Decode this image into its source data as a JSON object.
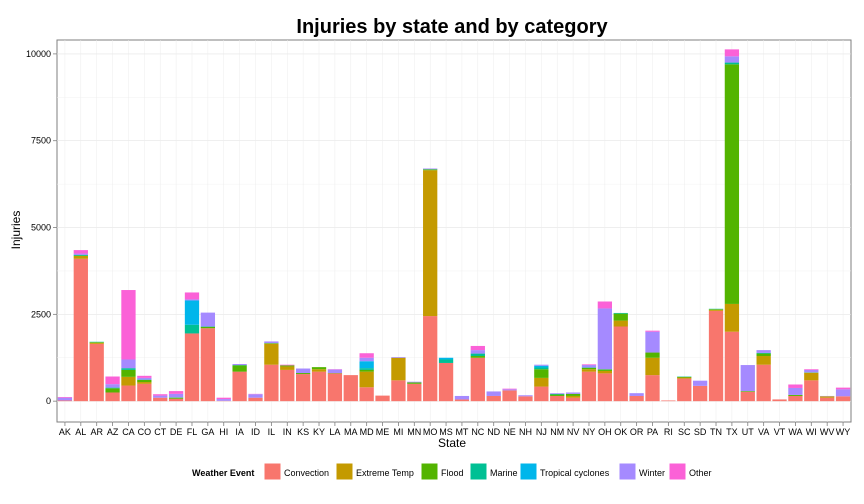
{
  "chart_data": {
    "type": "bar",
    "stacked": true,
    "title": "Injuries by state and by category",
    "xlabel": "State",
    "ylabel": "Injuries",
    "ylim": [
      -600,
      10400
    ],
    "yticks": [
      0,
      2500,
      5000,
      7500,
      10000
    ],
    "ytick_labels": [
      "0",
      "2500",
      "5000",
      "7500",
      "10000"
    ],
    "grid": true,
    "legend": {
      "title": "Weather Event",
      "position": "bottom"
    },
    "categories": [
      "AK",
      "AL",
      "AR",
      "AZ",
      "CA",
      "CO",
      "CT",
      "DE",
      "FL",
      "GA",
      "HI",
      "IA",
      "ID",
      "IL",
      "IN",
      "KS",
      "KY",
      "LA",
      "MA",
      "MD",
      "ME",
      "MI",
      "MN",
      "MO",
      "MS",
      "MT",
      "NC",
      "ND",
      "NE",
      "NH",
      "NJ",
      "NM",
      "NV",
      "NY",
      "OH",
      "OK",
      "OR",
      "PA",
      "RI",
      "SC",
      "SD",
      "TN",
      "TX",
      "UT",
      "VA",
      "VT",
      "WA",
      "WI",
      "WV",
      "WY"
    ],
    "series": [
      {
        "name": "Convection",
        "color": "#F8766D",
        "values": [
          20,
          4100,
          1650,
          250,
          450,
          500,
          100,
          70,
          1950,
          2100,
          10,
          850,
          100,
          1050,
          900,
          780,
          850,
          800,
          750,
          400,
          160,
          600,
          500,
          2450,
          1100,
          50,
          1250,
          150,
          310,
          140,
          420,
          150,
          100,
          850,
          800,
          2150,
          150,
          750,
          20,
          650,
          440,
          2600,
          2000,
          270,
          1050,
          50,
          150,
          600,
          100,
          140
        ]
      },
      {
        "name": "Extreme Temp",
        "color": "#C49A00",
        "values": [
          0,
          80,
          30,
          0,
          250,
          50,
          0,
          0,
          0,
          0,
          0,
          0,
          0,
          600,
          100,
          0,
          70,
          0,
          0,
          450,
          0,
          650,
          0,
          4200,
          0,
          0,
          0,
          0,
          0,
          0,
          250,
          0,
          50,
          70,
          70,
          170,
          0,
          500,
          0,
          30,
          0,
          30,
          800,
          0,
          250,
          0,
          0,
          220,
          40,
          0
        ]
      },
      {
        "name": "Flood",
        "color": "#53B400",
        "values": [
          0,
          10,
          20,
          120,
          200,
          60,
          0,
          30,
          0,
          40,
          0,
          180,
          0,
          20,
          30,
          30,
          60,
          10,
          0,
          50,
          0,
          0,
          40,
          20,
          0,
          0,
          50,
          0,
          0,
          0,
          250,
          40,
          60,
          40,
          40,
          200,
          0,
          150,
          0,
          20,
          0,
          20,
          6900,
          20,
          70,
          0,
          30,
          0,
          0,
          0
        ]
      },
      {
        "name": "Marine",
        "color": "#00C094",
        "values": [
          0,
          20,
          10,
          20,
          50,
          10,
          0,
          10,
          250,
          10,
          0,
          10,
          0,
          0,
          0,
          0,
          0,
          0,
          0,
          50,
          0,
          0,
          0,
          10,
          100,
          0,
          70,
          0,
          0,
          0,
          50,
          20,
          0,
          10,
          10,
          20,
          0,
          0,
          0,
          10,
          0,
          10,
          50,
          0,
          20,
          0,
          0,
          10,
          0,
          0
        ]
      },
      {
        "name": "Tropical cyclones",
        "color": "#00B6EB",
        "values": [
          0,
          0,
          0,
          0,
          0,
          0,
          0,
          0,
          700,
          0,
          0,
          0,
          0,
          0,
          0,
          0,
          0,
          0,
          0,
          200,
          0,
          0,
          0,
          0,
          50,
          0,
          0,
          0,
          0,
          0,
          50,
          0,
          0,
          0,
          0,
          0,
          0,
          0,
          0,
          0,
          0,
          0,
          0,
          0,
          0,
          0,
          0,
          0,
          0,
          0
        ]
      },
      {
        "name": "Winter",
        "color": "#A58AFF",
        "values": [
          80,
          40,
          0,
          100,
          250,
          50,
          60,
          100,
          30,
          400,
          50,
          30,
          100,
          50,
          0,
          130,
          0,
          100,
          0,
          100,
          0,
          20,
          20,
          20,
          0,
          100,
          100,
          130,
          30,
          30,
          30,
          20,
          40,
          70,
          1750,
          0,
          80,
          600,
          0,
          0,
          150,
          0,
          180,
          750,
          80,
          0,
          200,
          70,
          10,
          200
        ]
      },
      {
        "name": "Other",
        "color": "#FB61D7",
        "values": [
          20,
          100,
          0,
          220,
          2000,
          60,
          40,
          80,
          200,
          0,
          40,
          0,
          10,
          0,
          20,
          0,
          0,
          10,
          0,
          130,
          0,
          0,
          0,
          0,
          0,
          0,
          120,
          0,
          20,
          0,
          0,
          0,
          0,
          20,
          200,
          0,
          0,
          30,
          0,
          0,
          0,
          0,
          200,
          0,
          0,
          0,
          100,
          20,
          0,
          50
        ]
      }
    ]
  }
}
